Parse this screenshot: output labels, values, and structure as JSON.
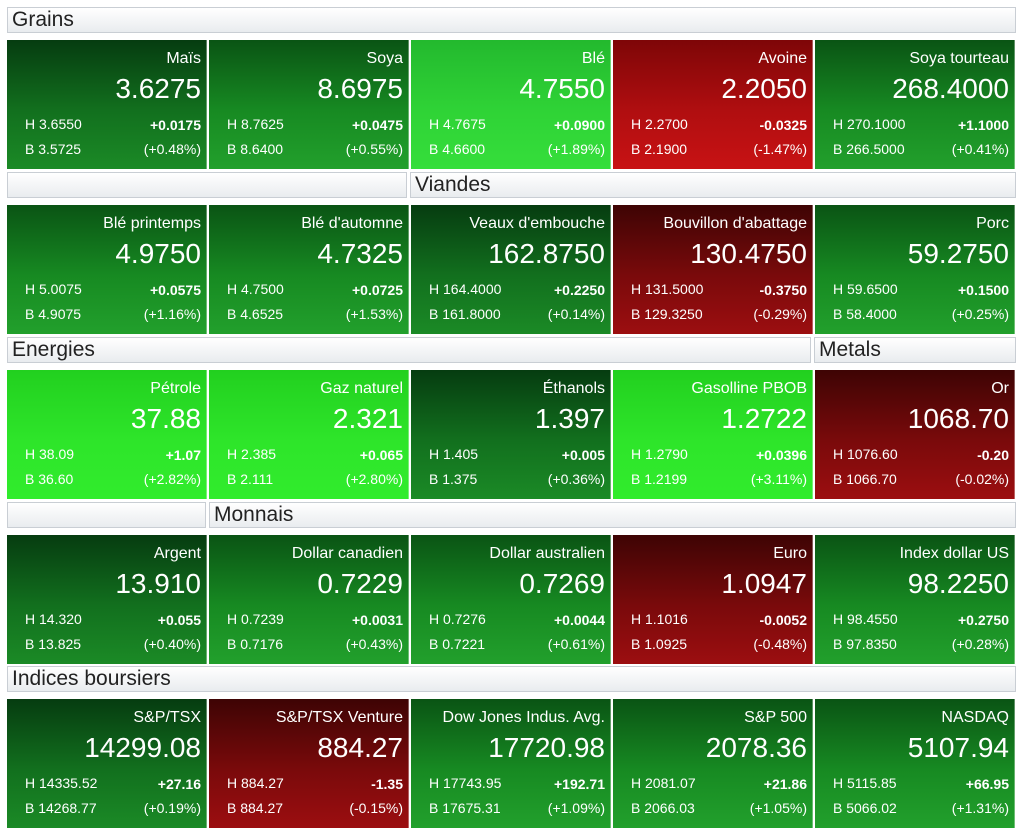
{
  "sections": {
    "grains": "Grains",
    "viandes": "Viandes",
    "energies": "Energies",
    "metals": "Metals",
    "monnais": "Monnais",
    "indices": "Indices boursiers"
  },
  "tiles": [
    {
      "name": "Maïs",
      "price": "3.6275",
      "high": "H 3.6550",
      "low": "B 3.5725",
      "change": "+0.0175",
      "percent": "(+0.48%)"
    },
    {
      "name": "Soya",
      "price": "8.6975",
      "high": "H 8.7625",
      "low": "B 8.6400",
      "change": "+0.0475",
      "percent": "(+0.55%)"
    },
    {
      "name": "Blé",
      "price": "4.7550",
      "high": "H 4.7675",
      "low": "B 4.6600",
      "change": "+0.0900",
      "percent": "(+1.89%)"
    },
    {
      "name": "Avoine",
      "price": "2.2050",
      "high": "H 2.2700",
      "low": "B 2.1900",
      "change": "-0.0325",
      "percent": "(-1.47%)"
    },
    {
      "name": "Soya tourteau",
      "price": "268.4000",
      "high": "H 270.1000",
      "low": "B 266.5000",
      "change": "+1.1000",
      "percent": "(+0.41%)"
    },
    {
      "name": "Blé printemps",
      "price": "4.9750",
      "high": "H 5.0075",
      "low": "B 4.9075",
      "change": "+0.0575",
      "percent": "(+1.16%)"
    },
    {
      "name": "Blé d'automne",
      "price": "4.7325",
      "high": "H 4.7500",
      "low": "B 4.6525",
      "change": "+0.0725",
      "percent": "(+1.53%)"
    },
    {
      "name": "Veaux d'embouche",
      "price": "162.8750",
      "high": "H 164.4000",
      "low": "B 161.8000",
      "change": "+0.2250",
      "percent": "(+0.14%)"
    },
    {
      "name": "Bouvillon d'abattage",
      "price": "130.4750",
      "high": "H 131.5000",
      "low": "B 129.3250",
      "change": "-0.3750",
      "percent": "(-0.29%)"
    },
    {
      "name": "Porc",
      "price": "59.2750",
      "high": "H 59.6500",
      "low": "B 58.4000",
      "change": "+0.1500",
      "percent": "(+0.25%)"
    },
    {
      "name": "Pétrole",
      "price": "37.88",
      "high": "H 38.09",
      "low": "B 36.60",
      "change": "+1.07",
      "percent": "(+2.82%)"
    },
    {
      "name": "Gaz naturel",
      "price": "2.321",
      "high": "H 2.385",
      "low": "B 2.111",
      "change": "+0.065",
      "percent": "(+2.80%)"
    },
    {
      "name": "Éthanols",
      "price": "1.397",
      "high": "H 1.405",
      "low": "B 1.375",
      "change": "+0.005",
      "percent": "(+0.36%)"
    },
    {
      "name": "Gasolline PBOB",
      "price": "1.2722",
      "high": "H 1.2790",
      "low": "B 1.2199",
      "change": "+0.0396",
      "percent": "(+3.11%)"
    },
    {
      "name": "Or",
      "price": "1068.70",
      "high": "H 1076.60",
      "low": "B 1066.70",
      "change": "-0.20",
      "percent": "(-0.02%)"
    },
    {
      "name": "Argent",
      "price": "13.910",
      "high": "H 14.320",
      "low": "B 13.825",
      "change": "+0.055",
      "percent": "(+0.40%)"
    },
    {
      "name": "Dollar canadien",
      "price": "0.7229",
      "high": "H 0.7239",
      "low": "B 0.7176",
      "change": "+0.0031",
      "percent": "(+0.43%)"
    },
    {
      "name": "Dollar australien",
      "price": "0.7269",
      "high": "H 0.7276",
      "low": "B 0.7221",
      "change": "+0.0044",
      "percent": "(+0.61%)"
    },
    {
      "name": "Euro",
      "price": "1.0947",
      "high": "H 1.1016",
      "low": "B 1.0925",
      "change": "-0.0052",
      "percent": "(-0.48%)"
    },
    {
      "name": "Index dollar US",
      "price": "98.2250",
      "high": "H 98.4550",
      "low": "B 97.8350",
      "change": "+0.2750",
      "percent": "(+0.28%)"
    },
    {
      "name": "S&P/TSX",
      "price": "14299.08",
      "high": "H 14335.52",
      "low": "B 14268.77",
      "change": "+27.16",
      "percent": "(+0.19%)"
    },
    {
      "name": "S&P/TSX Venture",
      "price": "884.27",
      "high": "H 884.27",
      "low": "B 884.27",
      "change": "-1.35",
      "percent": "(-0.15%)"
    },
    {
      "name": "Dow Jones Indus. Avg.",
      "price": "17720.98",
      "high": "H 17743.95",
      "low": "B 17675.31",
      "change": "+192.71",
      "percent": "(+1.09%)"
    },
    {
      "name": "S&P 500",
      "price": "2078.36",
      "high": "H 2081.07",
      "low": "B 2066.03",
      "change": "+21.86",
      "percent": "(+1.05%)"
    },
    {
      "name": "NASDAQ",
      "price": "5107.94",
      "high": "H 5115.85",
      "low": "B 5066.02",
      "change": "+66.95",
      "percent": "(+1.31%)"
    }
  ]
}
